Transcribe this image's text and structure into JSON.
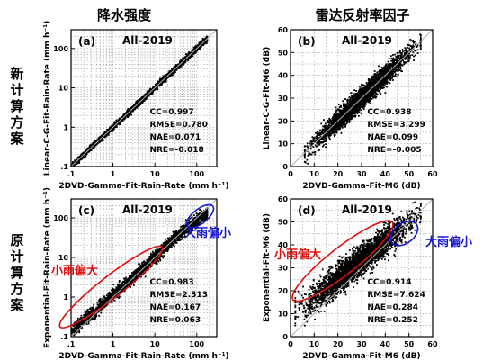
{
  "columns": [
    "降水强度",
    "雷达反射率因子"
  ],
  "rows": [
    {
      "label_chars": [
        "新",
        "计",
        "算",
        "方",
        "案"
      ]
    },
    {
      "label_chars": [
        "原",
        "计",
        "算",
        "方",
        "案"
      ]
    }
  ],
  "colors": {
    "points": "#000000",
    "identity_line": "#b0b0b0",
    "grid": "#8a8a8a",
    "red": "#e01010",
    "blue": "#1515d8"
  },
  "chart_data": [
    {
      "type": "scatter",
      "panel_label": "(a)",
      "title": "All-2019",
      "xlabel": "2DVD-Gamma-Fit-Rain-Rate (mm h⁻¹)",
      "ylabel": "Linear-C-G-Fit-Rain-Rate (mm h⁻¹)",
      "x_scale": "log",
      "y_scale": "log",
      "xlim": [
        0.1,
        300
      ],
      "ylim": [
        0.1,
        300
      ],
      "x_ticks": [
        0.1,
        1,
        10,
        100
      ],
      "x_tick_labels": [
        ".1",
        "1",
        "10",
        "100"
      ],
      "y_ticks": [
        0.1,
        1,
        10,
        100
      ],
      "y_tick_labels": [
        ".1",
        "1",
        "10",
        "100"
      ],
      "grid": true,
      "identity_line": true,
      "point_cloud": {
        "x_range": [
          0.1,
          180
        ],
        "spread_log10": 0.06
      },
      "stats": [
        "CC=0.997",
        "RMSE=0.780",
        "NAE=0.071",
        "NRE=-0.018"
      ],
      "annotations": []
    },
    {
      "type": "scatter",
      "panel_label": "(b)",
      "title": "All-2019",
      "xlabel": "2DVD-Gamma-Fit-M6 (dB)",
      "ylabel": "Linear-C-G-Fit-M6 (dB)",
      "x_scale": "linear",
      "y_scale": "linear",
      "xlim": [
        0,
        60
      ],
      "ylim": [
        0,
        60
      ],
      "x_ticks": [
        0,
        10,
        20,
        30,
        40,
        50,
        60
      ],
      "y_ticks": [
        0,
        10,
        20,
        30,
        40,
        50,
        60
      ],
      "grid": true,
      "identity_line": true,
      "point_cloud": {
        "x_range": [
          6,
          55
        ],
        "spread": 3.2
      },
      "stats": [
        "CC=0.938",
        "RMSE=3.299",
        "NAE=0.099",
        "NRE=-0.005"
      ],
      "annotations": []
    },
    {
      "type": "scatter",
      "panel_label": "(c)",
      "title": "All-2019",
      "xlabel": "2DVD-Gamma-Fit-Rain-Rate (mm h⁻¹)",
      "ylabel": "Exponential-Fit-Rain-Rate (mm h⁻¹)",
      "x_scale": "log",
      "y_scale": "log",
      "xlim": [
        0.1,
        300
      ],
      "ylim": [
        0.1,
        300
      ],
      "x_ticks": [
        0.1,
        1,
        10,
        100
      ],
      "x_tick_labels": [
        ".1",
        "1",
        "10",
        "100"
      ],
      "y_ticks": [
        0.1,
        1,
        10,
        100
      ],
      "y_tick_labels": [
        ".1",
        "1",
        "10",
        "100"
      ],
      "grid": true,
      "identity_line": true,
      "point_cloud": {
        "x_range": [
          0.1,
          180
        ],
        "spread_log10": 0.12,
        "low_bias_log10": 0.12
      },
      "stats": [
        "CC=0.983",
        "RMSE=2.313",
        "NAE=0.167",
        "NRE=0.063"
      ],
      "annotations": [
        {
          "text": "小雨偏大",
          "color": "red",
          "ellipse_center": [
            0.9,
            1.8
          ]
        },
        {
          "text": "大雨偏小",
          "color": "blue",
          "ellipse_center": [
            120,
            110
          ]
        }
      ]
    },
    {
      "type": "scatter",
      "panel_label": "(d)",
      "title": "All-2019",
      "xlabel": "2DVD-Gamma-Fit-M6 (dB)",
      "ylabel": "Exponential-Fit-M6 (dB)",
      "x_scale": "linear",
      "y_scale": "linear",
      "xlim": [
        0,
        60
      ],
      "ylim": [
        0,
        60
      ],
      "x_ticks": [
        0,
        10,
        20,
        30,
        40,
        50,
        60
      ],
      "y_ticks": [
        0,
        10,
        20,
        30,
        40,
        50,
        60
      ],
      "grid": true,
      "identity_line": true,
      "point_cloud": {
        "x_range": [
          2,
          55
        ],
        "spread": 4.5,
        "low_bias": 5
      },
      "stats": [
        "CC=0.914",
        "RMSE=7.624",
        "NAE=0.284",
        "NRE=0.252"
      ],
      "annotations": [
        {
          "text": "小雨偏大",
          "color": "red",
          "ellipse_center": [
            22,
            33
          ]
        },
        {
          "text": "大雨偏小",
          "color": "blue",
          "ellipse_center": [
            48,
            45
          ]
        }
      ]
    }
  ]
}
